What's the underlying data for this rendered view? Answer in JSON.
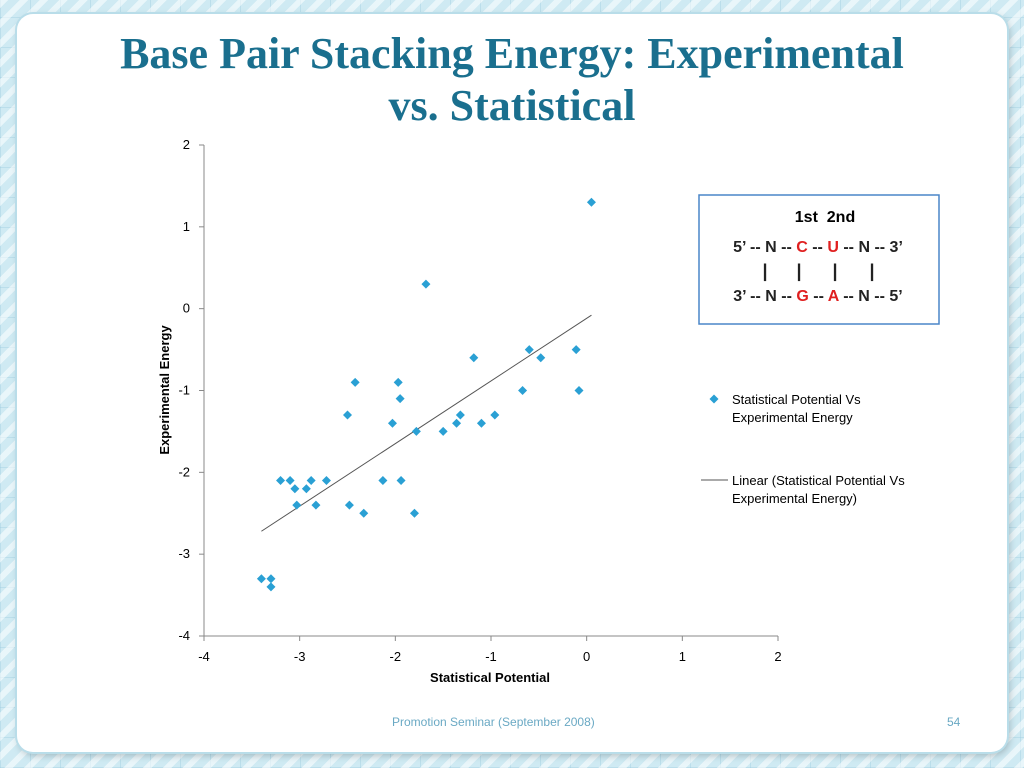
{
  "slide": {
    "title_line1": "Base Pair Stacking Energy: Experimental",
    "title_line2": "vs. Statistical",
    "footer": "Promotion Seminar (September 2008)",
    "page_number": "54"
  },
  "inset": {
    "header": "1st  2nd",
    "top_strand": [
      {
        "t": "5’ -- ",
        "c": "#222222"
      },
      {
        "t": "N",
        "c": "#222222"
      },
      {
        "t": " -- ",
        "c": "#222222"
      },
      {
        "t": "C",
        "c": "#e02020"
      },
      {
        "t": " -- ",
        "c": "#222222"
      },
      {
        "t": "U",
        "c": "#e02020"
      },
      {
        "t": " -- ",
        "c": "#222222"
      },
      {
        "t": "N",
        "c": "#222222"
      },
      {
        "t": " -- 3’",
        "c": "#222222"
      }
    ],
    "bond": "|",
    "bottom_strand": [
      {
        "t": "3’ -- ",
        "c": "#222222"
      },
      {
        "t": "N",
        "c": "#222222"
      },
      {
        "t": " -- ",
        "c": "#222222"
      },
      {
        "t": "G",
        "c": "#e02020"
      },
      {
        "t": " -- ",
        "c": "#222222"
      },
      {
        "t": "A",
        "c": "#e02020"
      },
      {
        "t": " -- ",
        "c": "#222222"
      },
      {
        "t": "N",
        "c": "#222222"
      },
      {
        "t": " -- 5’",
        "c": "#222222"
      }
    ]
  },
  "chart_data": {
    "type": "scatter",
    "xlabel": "Statistical Potential",
    "ylabel": "Experimental Energy",
    "xlim": [
      -4,
      2
    ],
    "ylim": [
      -4,
      2
    ],
    "xticks": [
      -4,
      -3,
      -2,
      -1,
      0,
      1,
      2
    ],
    "yticks": [
      -4,
      -3,
      -2,
      -1,
      0,
      1,
      2
    ],
    "grid": false,
    "legend_position": "right",
    "marker_color": "#2aa0d4",
    "line_color": "#555555",
    "series": [
      {
        "name": "Statistical Potential Vs Experimental Energy",
        "marker": "diamond",
        "points": [
          [
            -3.4,
            -3.3
          ],
          [
            -3.3,
            -3.3
          ],
          [
            -3.3,
            -3.4
          ],
          [
            -3.2,
            -2.1
          ],
          [
            -3.1,
            -2.1
          ],
          [
            -3.05,
            -2.2
          ],
          [
            -3.03,
            -2.4
          ],
          [
            -2.93,
            -2.2
          ],
          [
            -2.88,
            -2.1
          ],
          [
            -2.83,
            -2.4
          ],
          [
            -2.72,
            -2.1
          ],
          [
            -2.5,
            -1.3
          ],
          [
            -2.48,
            -2.4
          ],
          [
            -2.42,
            -0.9
          ],
          [
            -2.33,
            -2.5
          ],
          [
            -2.13,
            -2.1
          ],
          [
            -2.03,
            -1.4
          ],
          [
            -1.97,
            -0.9
          ],
          [
            -1.95,
            -1.1
          ],
          [
            -1.94,
            -2.1
          ],
          [
            -1.8,
            -2.5
          ],
          [
            -1.78,
            -1.5
          ],
          [
            -1.68,
            0.3
          ],
          [
            -1.5,
            -1.5
          ],
          [
            -1.36,
            -1.4
          ],
          [
            -1.32,
            -1.3
          ],
          [
            -1.18,
            -0.6
          ],
          [
            -1.1,
            -1.4
          ],
          [
            -0.96,
            -1.3
          ],
          [
            -0.67,
            -1.0
          ],
          [
            -0.6,
            -0.5
          ],
          [
            -0.48,
            -0.6
          ],
          [
            -0.11,
            -0.5
          ],
          [
            -0.08,
            -1.0
          ],
          [
            0.05,
            1.3
          ]
        ]
      },
      {
        "name": "Linear (Statistical Potential Vs Experimental Energy)",
        "type": "line",
        "points": [
          [
            -3.4,
            -2.72
          ],
          [
            0.05,
            -0.08
          ]
        ]
      }
    ]
  }
}
